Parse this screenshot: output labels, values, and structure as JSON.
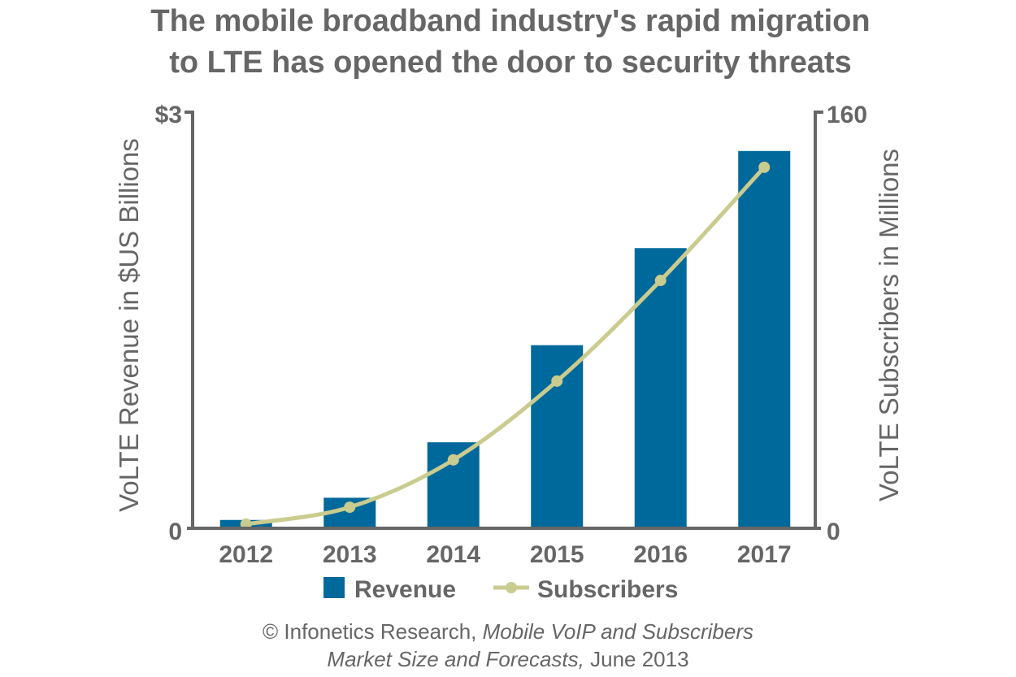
{
  "chart_data": {
    "type": "bar+line",
    "title": [
      "The mobile broadband industry's rapid migration",
      "to LTE has opened the door to security threats"
    ],
    "categories": [
      "2012",
      "2013",
      "2014",
      "2015",
      "2016",
      "2017"
    ],
    "series": [
      {
        "name": "Revenue",
        "type": "bar",
        "axis": "left",
        "values": [
          0.06,
          0.22,
          0.62,
          1.32,
          2.02,
          2.72
        ],
        "color": "#00699B"
      },
      {
        "name": "Subscribers",
        "type": "line",
        "axis": "right",
        "values": [
          1.6,
          8.1,
          26.3,
          56.6,
          95.3,
          138.8
        ],
        "color": "#CACB8E"
      }
    ],
    "left_axis": {
      "label": "VoLTE Revenue in $US Billions",
      "ylim": [
        0,
        3
      ],
      "tick_labels": [
        "0",
        "$3"
      ]
    },
    "right_axis": {
      "label": "VoLTE Subscribers in Millions",
      "ylim": [
        0,
        160
      ],
      "tick_labels": [
        "0",
        "160"
      ]
    },
    "legend_placement": "bottom",
    "grid": false,
    "axis_color": "#666666"
  },
  "source": {
    "line1_prefix": "© Infonetics Research, ",
    "line1_italic": "Mobile VoIP and Subscribers",
    "line2_italic": "Market Size and Forecasts,",
    "line2_suffix": " June 2013"
  }
}
